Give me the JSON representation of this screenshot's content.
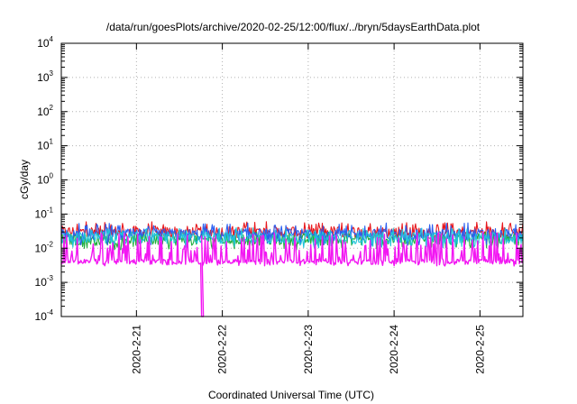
{
  "chart_data": {
    "type": "line",
    "title": "/data/run/goesPlots/archive/2020-02-25/12:00/flux/../bryn/5daysEarthData.plot",
    "xlabel": "Coordinated Universal Time (UTC)",
    "ylabel": "cGy/day",
    "yscale": "log",
    "ylim": [
      0.0001,
      10000
    ],
    "xlim": [
      "2020-02-20 03:00",
      "2020-02-25 12:00"
    ],
    "x_ticks": [
      "2020-2-21",
      "2020-2-22",
      "2020-2-23",
      "2020-2-24",
      "2020-2-25"
    ],
    "y_ticks": [
      {
        "base": "10",
        "exp": "-4",
        "value": 0.0001
      },
      {
        "base": "10",
        "exp": "-3",
        "value": 0.001
      },
      {
        "base": "10",
        "exp": "-2",
        "value": 0.01
      },
      {
        "base": "10",
        "exp": "-1",
        "value": 0.1
      },
      {
        "base": "10",
        "exp": "0",
        "value": 1
      },
      {
        "base": "10",
        "exp": "1",
        "value": 10
      },
      {
        "base": "10",
        "exp": "2",
        "value": 100
      },
      {
        "base": "10",
        "exp": "3",
        "value": 1000
      },
      {
        "base": "10",
        "exp": "4",
        "value": 10000
      }
    ],
    "grid": true,
    "legend": "none",
    "series": [
      {
        "color": "#e8171c",
        "typical": 0.03,
        "low": 0.02,
        "high": 0.06
      },
      {
        "color": "#1fae3b",
        "typical": 0.018,
        "low": 0.009,
        "high": 0.03
      },
      {
        "color": "#2b5ff0",
        "typical": 0.025,
        "low": 0.012,
        "high": 0.055
      },
      {
        "color": "#20c4d8",
        "typical": 0.02,
        "low": 0.01,
        "high": 0.04
      },
      {
        "color": "#f217f2",
        "typical": 0.004,
        "low": 0.003,
        "high": 0.03,
        "dropout": {
          "time": "2020-02-21 18:00",
          "value": 0.0001
        }
      }
    ]
  }
}
